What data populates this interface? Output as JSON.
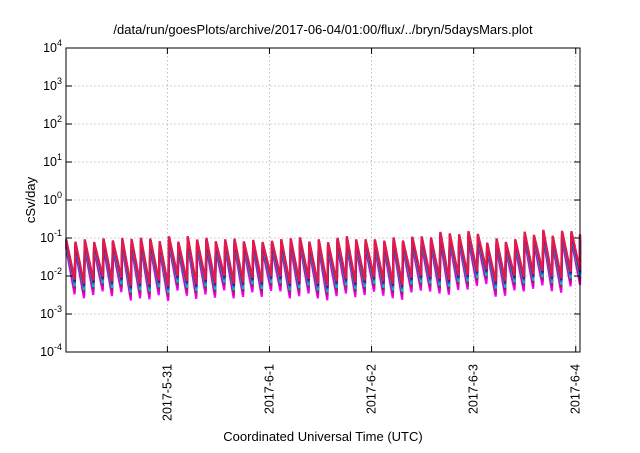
{
  "chart_data": {
    "type": "line",
    "title": "/data/run/goesPlots/archive/2017-06-04/01:00/flux/../bryn/5daysMars.plot",
    "xlabel": "Coordinated Universal Time (UTC)",
    "ylabel": "cSv/day",
    "yscale": "log",
    "ylim": [
      0.0001,
      10000
    ],
    "xlim": [
      "2017-05-30 00:10",
      "2017-06-04 01:00"
    ],
    "grid": true,
    "y_ticks": [
      {
        "base": "10",
        "exp": "-4",
        "value": 0.0001
      },
      {
        "base": "10",
        "exp": "-3",
        "value": 0.001
      },
      {
        "base": "10",
        "exp": "-2",
        "value": 0.01
      },
      {
        "base": "10",
        "exp": "-1",
        "value": 0.1
      },
      {
        "base": "10",
        "exp": "0",
        "value": 1
      },
      {
        "base": "10",
        "exp": "1",
        "value": 10
      },
      {
        "base": "10",
        "exp": "2",
        "value": 100
      },
      {
        "base": "10",
        "exp": "3",
        "value": 1000
      },
      {
        "base": "10",
        "exp": "4",
        "value": 10000
      }
    ],
    "x_ticks": [
      {
        "label": "2017-5-31",
        "value": "2017-05-31 00:00"
      },
      {
        "label": "2017-6-1",
        "value": "2017-06-01 00:00"
      },
      {
        "label": "2017-6-2",
        "value": "2017-06-02 00:00"
      },
      {
        "label": "2017-6-3",
        "value": "2017-06-03 00:00"
      },
      {
        "label": "2017-6-4",
        "value": "2017-06-04 00:00"
      }
    ],
    "series_colors": [
      "#ff00ff",
      "#dd00dd",
      "#c71585",
      "#8b2252",
      "#00bcd4",
      "#20b2aa",
      "#2e6bd8",
      "#1f3fbf",
      "#4b0082",
      "#e6194b"
    ],
    "pattern": {
      "description_values": "periodic sawtooth; peaks near 0.1 cSv/day, troughs near 0.001 cSv/day, about 11 cycles per day",
      "period_hours": 2.2,
      "peak_range": [
        0.06,
        0.14
      ],
      "trough_range": [
        0.0008,
        0.004
      ]
    }
  }
}
